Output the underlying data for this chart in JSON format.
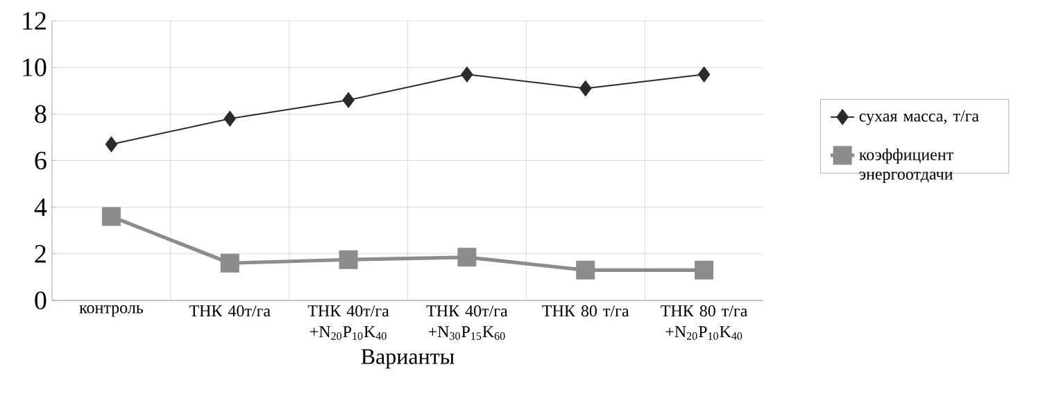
{
  "chart_data": {
    "type": "line",
    "xlabel": "Варианты",
    "categories": [
      "контроль",
      "ТНК 40т/га",
      "ТНК 40т/га +N$_{20}$P$_{10}$K$_{40}$",
      "ТНК 40т/га +N$_{30}$P$_{15}$K$_{60}$",
      "ТНК 80 т/га",
      "ТНК 80 т/га +N$_{20}$P$_{10}$K$_{40}$"
    ],
    "ylim": [
      0,
      12
    ],
    "yticks": [
      0,
      2,
      4,
      6,
      8,
      10,
      12
    ],
    "grid": true,
    "legend": "right",
    "line_style": "solid",
    "series": [
      {
        "name": "сухая масса, т/га",
        "color": "#2b2b2b",
        "marker": "diamond",
        "values": [
          6.7,
          7.8,
          8.6,
          9.7,
          9.1,
          9.7
        ]
      },
      {
        "name": "коэффициент энергоотдачи",
        "color": "#8c8c8c",
        "marker": "square",
        "values": [
          3.6,
          1.6,
          1.75,
          1.85,
          1.3,
          1.3
        ]
      }
    ]
  }
}
